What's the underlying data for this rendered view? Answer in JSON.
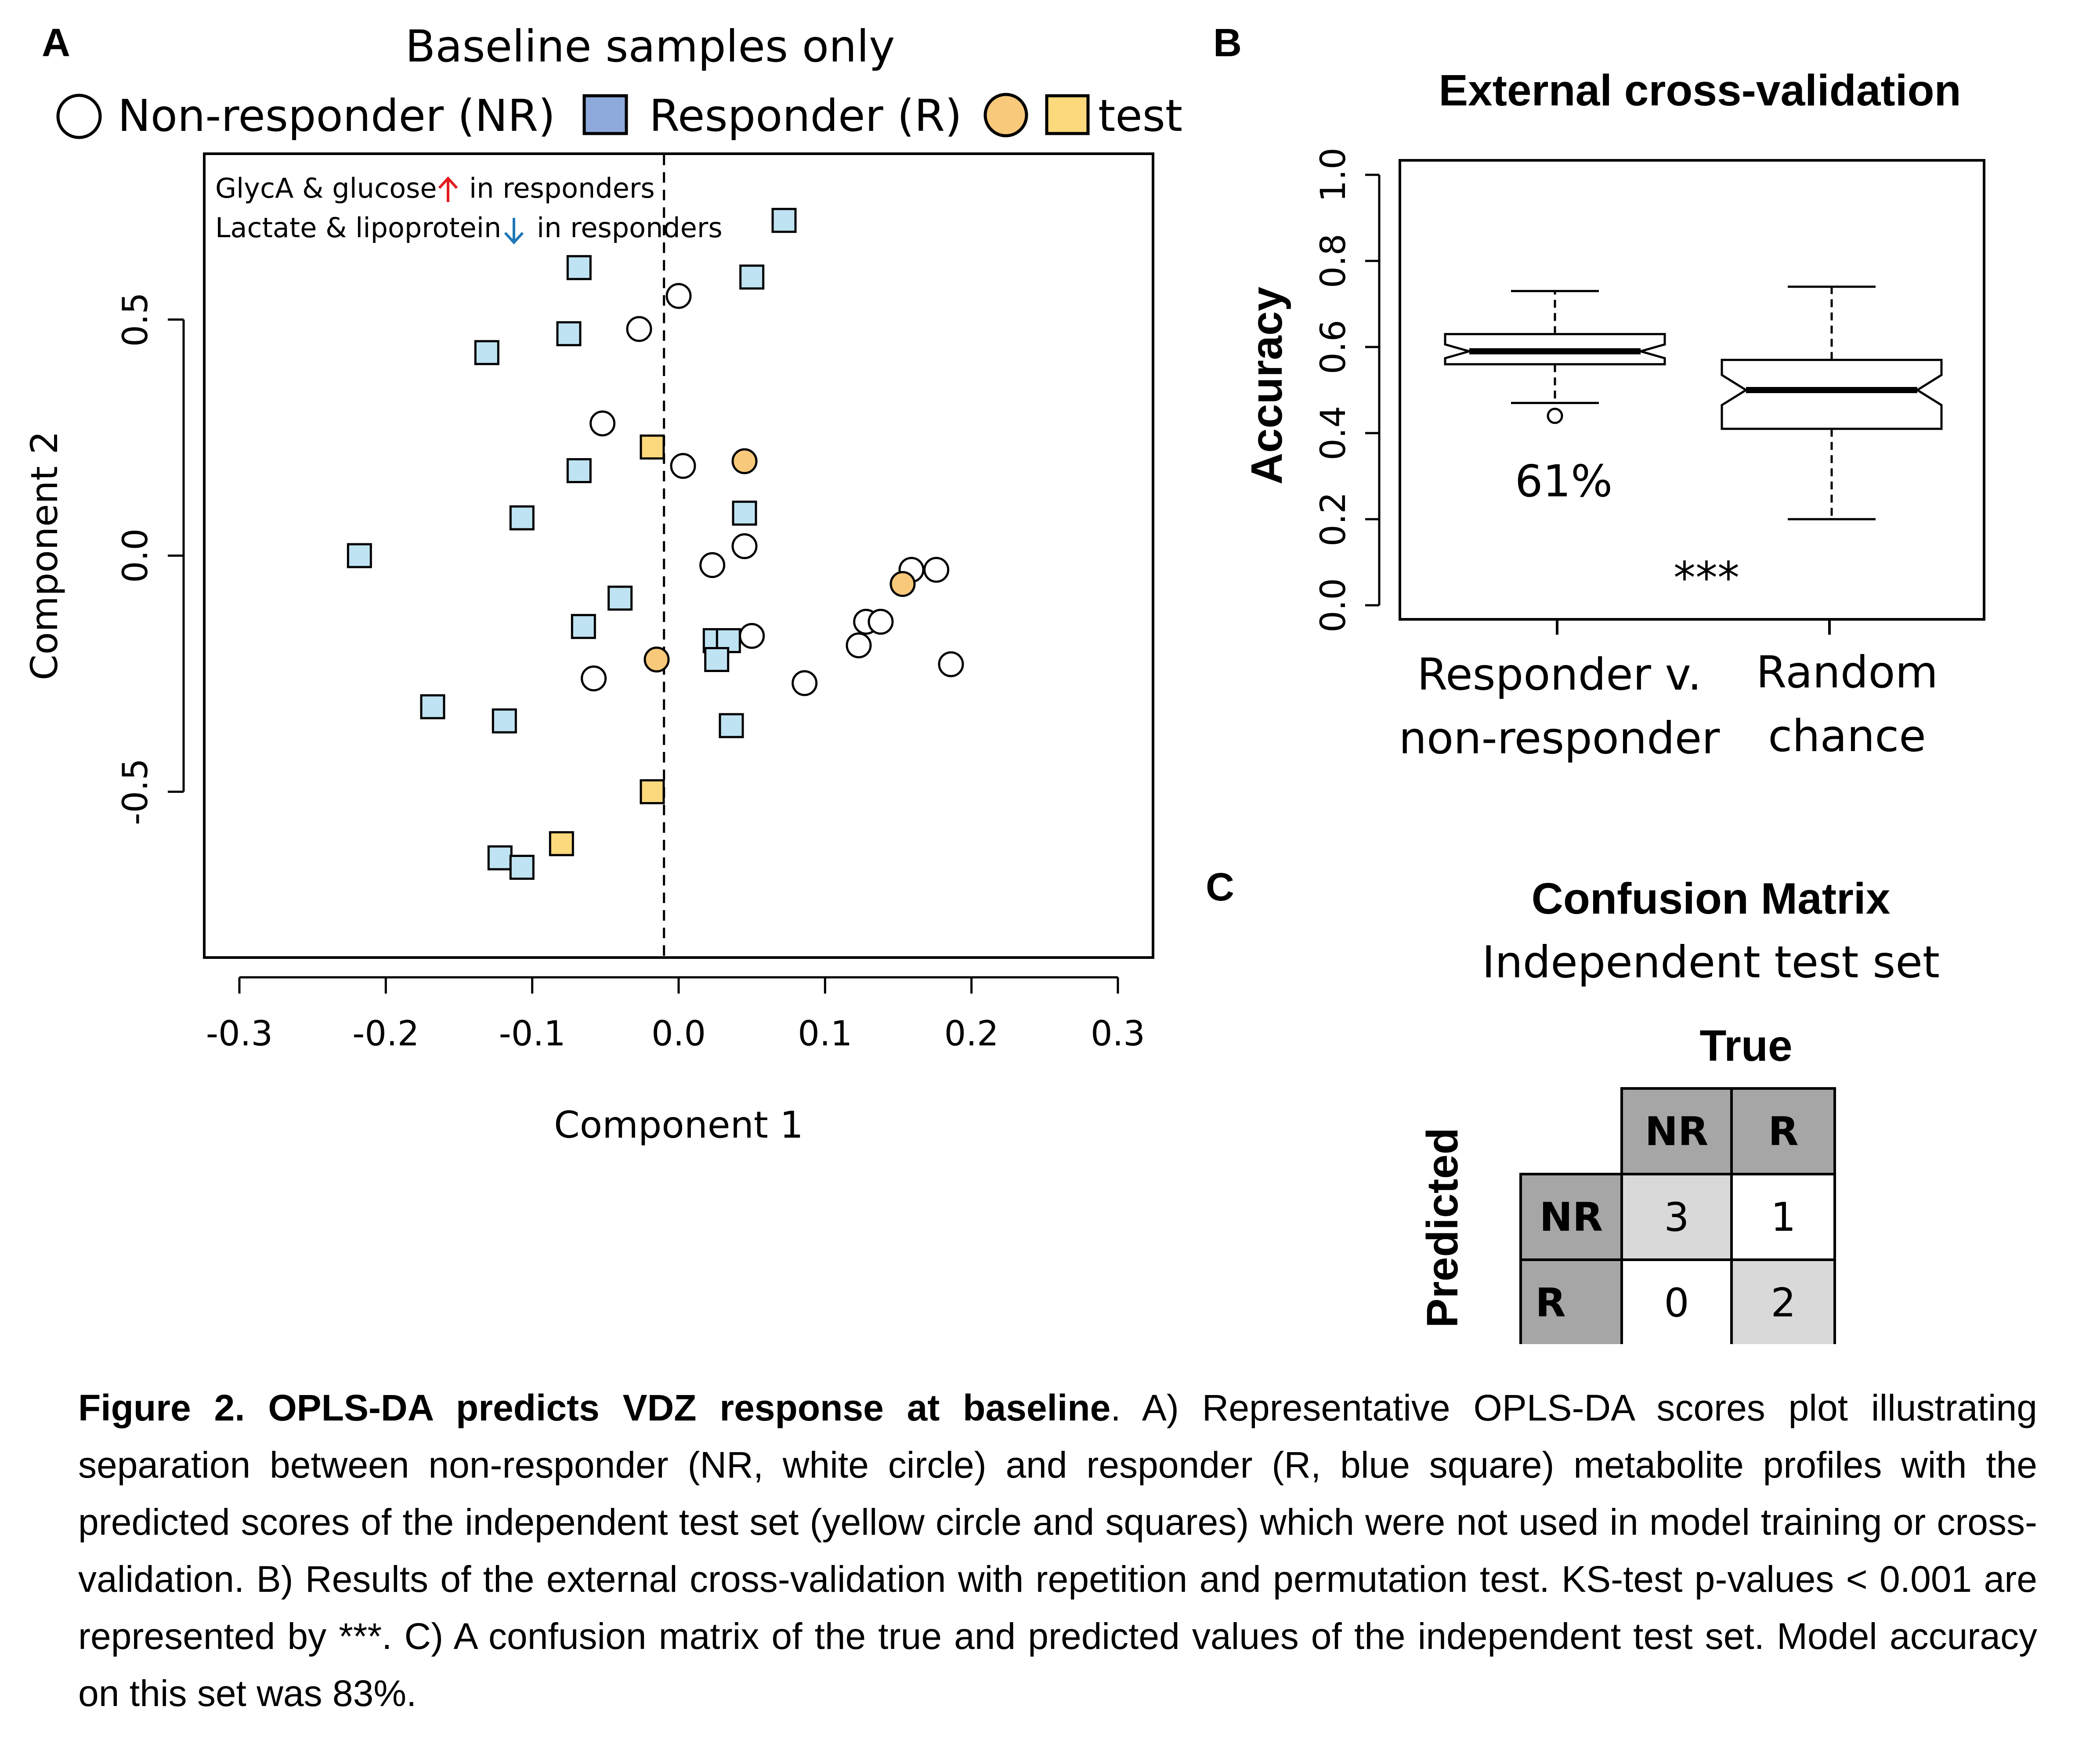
{
  "panels": {
    "a": {
      "letter": "A",
      "title": "Baseline samples only",
      "legend": {
        "nr": "Non-responder (NR)",
        "r": "Responder (R)",
        "test": "test"
      },
      "annotation_line1_pre": "GlycA & glucose",
      "annotation_line1_post": "in responders",
      "annotation_line2_pre": "Lactate & lipoprotein",
      "annotation_line2_post": "in responders",
      "colors": {
        "responder": "#bfe3f2",
        "test": "#f8c97a",
        "test_square": "#fbd97c",
        "up_arrow": "#e41a1c",
        "down_arrow": "#1f78b4"
      }
    },
    "b": {
      "letter": "B",
      "title": "External cross-validation",
      "ylabel": "Accuracy",
      "cat1_line1": "Responder v.",
      "cat1_line2": "non-responder",
      "cat2_line1": "Random",
      "cat2_line2": "chance",
      "pct": "61%",
      "sig": "***"
    },
    "c": {
      "letter": "C",
      "title": "Confusion Matrix",
      "subtitle": "Independent test set",
      "true_label": "True",
      "predicted_label": "Predicted",
      "col_headers": [
        "NR",
        "R"
      ],
      "row_headers": [
        "NR",
        "R"
      ],
      "cells": [
        [
          "3",
          "1"
        ],
        [
          "0",
          "2"
        ]
      ]
    }
  },
  "chart_data": [
    {
      "type": "scatter",
      "xlabel": "Component 1",
      "ylabel": "Component 2",
      "xlim": [
        -0.3,
        0.3
      ],
      "ylim": [
        -0.8,
        0.85
      ],
      "x_ticks": [
        -0.3,
        -0.2,
        -0.1,
        0.0,
        0.1,
        0.2,
        0.3
      ],
      "x_tick_labels": [
        "-0.3",
        "-0.2",
        "-0.1",
        "0.0",
        "0.1",
        "0.2",
        "0.3"
      ],
      "y_ticks": [
        -0.5,
        0.0,
        0.5
      ],
      "y_tick_labels": [
        "-0.5",
        "0.0",
        "0.5"
      ],
      "vline_x": -0.01,
      "series": [
        {
          "name": "Non-responder (NR)",
          "marker": "circle",
          "fill": "#ffffff",
          "x": [
            0.0,
            -0.027,
            -0.052,
            0.003,
            0.045,
            0.023,
            0.159,
            0.176,
            0.128,
            0.138,
            0.05,
            0.123,
            0.186,
            -0.058,
            0.086
          ],
          "y": [
            0.55,
            0.48,
            0.28,
            0.19,
            0.02,
            -0.02,
            -0.03,
            -0.03,
            -0.14,
            -0.14,
            -0.17,
            -0.19,
            -0.23,
            -0.26,
            -0.27
          ]
        },
        {
          "name": "Responder (R)",
          "marker": "square",
          "fill": "#bfe3f2",
          "x": [
            0.072,
            -0.068,
            0.05,
            -0.075,
            -0.131,
            -0.068,
            -0.107,
            0.045,
            -0.218,
            -0.04,
            -0.065,
            0.025,
            0.034,
            0.026,
            -0.168,
            -0.119,
            0.036,
            -0.122,
            -0.107
          ],
          "y": [
            0.71,
            0.61,
            0.59,
            0.47,
            0.43,
            0.18,
            0.08,
            0.09,
            0.0,
            -0.09,
            -0.15,
            -0.18,
            -0.18,
            -0.22,
            -0.32,
            -0.35,
            -0.36,
            -0.64,
            -0.66
          ]
        },
        {
          "name": "test",
          "marker": "circle",
          "fill": "#f8c97a",
          "x": [
            0.045,
            0.153,
            -0.015
          ],
          "y": [
            0.2,
            -0.06,
            -0.22
          ]
        },
        {
          "name": "test",
          "marker": "square",
          "fill": "#fbd97c",
          "x": [
            -0.018,
            -0.018,
            -0.08
          ],
          "y": [
            0.23,
            -0.5,
            -0.61
          ]
        }
      ]
    },
    {
      "type": "box",
      "ylabel": "Accuracy",
      "ylim": [
        0.0,
        1.0
      ],
      "y_ticks": [
        0.0,
        0.2,
        0.4,
        0.6,
        0.8,
        1.0
      ],
      "y_tick_labels": [
        "0.0",
        "0.2",
        "0.4",
        "0.6",
        "0.8",
        "1.0"
      ],
      "categories": [
        "Responder v. non-responder",
        "Random chance"
      ],
      "boxes": [
        {
          "whisker_low": 0.47,
          "q1": 0.56,
          "median": 0.59,
          "q3": 0.63,
          "whisker_high": 0.73,
          "notch": [
            0.574,
            0.606
          ],
          "outliers": [
            0.44
          ]
        },
        {
          "whisker_low": 0.2,
          "q1": 0.41,
          "median": 0.5,
          "q3": 0.57,
          "whisker_high": 0.74,
          "notch": [
            0.465,
            0.535
          ],
          "outliers": []
        }
      ]
    }
  ],
  "caption": {
    "bold_part": "Figure 2. OPLS-DA predicts VDZ response at baseline",
    "rest": ". A) Representative OPLS-DA scores plot illustrating separation between non-responder (NR, white circle) and responder (R, blue square) metabolite profiles with the predicted scores of the independent test set (yellow circle and squares) which were not used in model training or cross-validation. B) Results of the external cross-validation with repetition and permutation test. KS-test p-values < 0.001 are represented by ***. C) A confusion matrix of the true and predicted values of the independent test set. Model accuracy on this set was 83%."
  }
}
